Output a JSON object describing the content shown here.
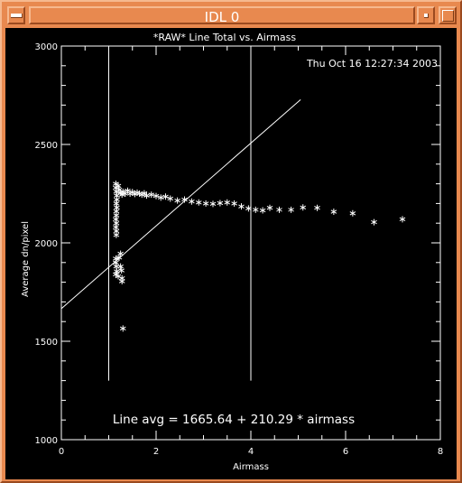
{
  "window": {
    "title": "IDL 0"
  },
  "chart_data": {
    "type": "scatter",
    "title": "*RAW* Line Total vs. Airmass",
    "timestamp": "Thu Oct 16 12:27:34 2003",
    "xlabel": "Airmass",
    "ylabel": "Average dn/pixel",
    "xlim": [
      0,
      8
    ],
    "ylim": [
      1000,
      3000
    ],
    "x_ticks": [
      "0",
      "2",
      "4",
      "6",
      "8"
    ],
    "y_ticks": [
      "1000",
      "1500",
      "2000",
      "2500",
      "3000"
    ],
    "annotation": "Line avg = 1665.64 + 210.29 * airmass",
    "fit": {
      "intercept": 1665.64,
      "slope": 210.29,
      "x_range": [
        0,
        5.05
      ]
    },
    "vertical_lines": [
      1.0,
      4.0
    ],
    "vertical_line_range": [
      1300,
      3000
    ],
    "series": [
      {
        "marker": "asterisk",
        "points": [
          [
            1.15,
            2300
          ],
          [
            1.15,
            2280
          ],
          [
            1.16,
            2260
          ],
          [
            1.17,
            2240
          ],
          [
            1.17,
            2220
          ],
          [
            1.16,
            2200
          ],
          [
            1.17,
            2180
          ],
          [
            1.16,
            2160
          ],
          [
            1.16,
            2140
          ],
          [
            1.15,
            2120
          ],
          [
            1.16,
            2100
          ],
          [
            1.15,
            2080
          ],
          [
            1.16,
            2060
          ],
          [
            1.16,
            2040
          ],
          [
            1.2,
            2290
          ],
          [
            1.22,
            2270
          ],
          [
            1.25,
            2255
          ],
          [
            1.28,
            2245
          ],
          [
            1.3,
            2260
          ],
          [
            1.35,
            2250
          ],
          [
            1.4,
            2265
          ],
          [
            1.45,
            2250
          ],
          [
            1.5,
            2258
          ],
          [
            1.55,
            2248
          ],
          [
            1.6,
            2255
          ],
          [
            1.65,
            2250
          ],
          [
            1.7,
            2245
          ],
          [
            1.75,
            2252
          ],
          [
            1.8,
            2240
          ],
          [
            1.9,
            2245
          ],
          [
            2.0,
            2238
          ],
          [
            2.1,
            2230
          ],
          [
            2.2,
            2235
          ],
          [
            2.3,
            2225
          ],
          [
            2.45,
            2215
          ],
          [
            2.6,
            2220
          ],
          [
            2.75,
            2210
          ],
          [
            2.9,
            2205
          ],
          [
            3.05,
            2200
          ],
          [
            3.2,
            2198
          ],
          [
            3.35,
            2202
          ],
          [
            3.5,
            2205
          ],
          [
            3.65,
            2200
          ],
          [
            3.8,
            2185
          ],
          [
            3.95,
            2175
          ],
          [
            4.1,
            2168
          ],
          [
            4.25,
            2165
          ],
          [
            4.4,
            2178
          ],
          [
            4.6,
            2168
          ],
          [
            4.85,
            2168
          ],
          [
            5.1,
            2180
          ],
          [
            5.4,
            2178
          ],
          [
            5.75,
            2158
          ],
          [
            6.15,
            2150
          ],
          [
            6.6,
            2105
          ],
          [
            7.2,
            2120
          ],
          [
            1.15,
            1920
          ],
          [
            1.15,
            1900
          ],
          [
            1.16,
            1880
          ],
          [
            1.17,
            1855
          ],
          [
            1.15,
            1840
          ],
          [
            1.2,
            1830
          ],
          [
            1.25,
            1880
          ],
          [
            1.27,
            1860
          ],
          [
            1.28,
            1820
          ],
          [
            1.28,
            1805
          ],
          [
            1.22,
            1925
          ],
          [
            1.25,
            1945
          ],
          [
            1.3,
            1565
          ]
        ]
      }
    ]
  }
}
